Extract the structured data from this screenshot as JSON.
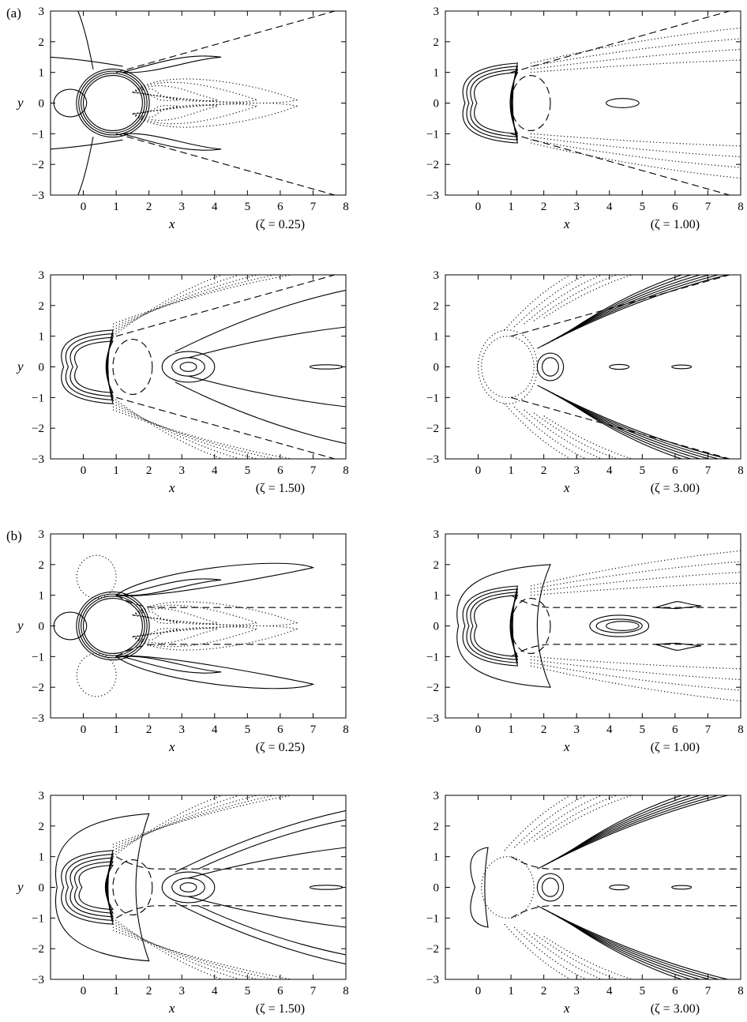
{
  "groups": [
    {
      "label": "(a)",
      "panels": [
        0,
        1,
        2,
        3
      ]
    },
    {
      "label": "(b)",
      "panels": [
        4,
        5,
        6,
        7
      ]
    }
  ],
  "chart_data": [
    {
      "type": "contour",
      "group": "a",
      "annotation": "(ζ = 0.25)",
      "xlabel": "x",
      "ylabel": "y",
      "xlim": [
        -1,
        8
      ],
      "ylim": [
        -3,
        3
      ],
      "xticks": [
        0,
        1,
        2,
        3,
        4,
        5,
        6,
        7,
        8
      ],
      "yticks": [
        -3,
        -2,
        -1,
        0,
        1,
        2,
        3
      ],
      "wake_lines": "diverging",
      "solid_levels": 4,
      "dotted_levels": 4
    },
    {
      "type": "contour",
      "group": "a",
      "annotation": "(ζ = 1.00)",
      "xlabel": "x",
      "ylabel": "",
      "xlim": [
        -1,
        8
      ],
      "ylim": [
        -3,
        3
      ],
      "xticks": [
        0,
        1,
        2,
        3,
        4,
        5,
        6,
        7,
        8
      ],
      "yticks": [
        -3,
        -2,
        -1,
        0,
        1,
        2,
        3
      ],
      "wake_lines": "diverging",
      "solid_levels": 4,
      "dotted_levels": 4
    },
    {
      "type": "contour",
      "group": "a",
      "annotation": "(ζ = 1.50)",
      "xlabel": "x",
      "ylabel": "y",
      "xlim": [
        -1,
        8
      ],
      "ylim": [
        -3,
        3
      ],
      "xticks": [
        0,
        1,
        2,
        3,
        4,
        5,
        6,
        7,
        8
      ],
      "yticks": [
        -3,
        -2,
        -1,
        0,
        1,
        2,
        3
      ],
      "wake_lines": "diverging",
      "solid_levels": 4,
      "dotted_levels": 5
    },
    {
      "type": "contour",
      "group": "a",
      "annotation": "(ζ = 3.00)",
      "xlabel": "x",
      "ylabel": "",
      "xlim": [
        -1,
        8
      ],
      "ylim": [
        -3,
        3
      ],
      "xticks": [
        0,
        1,
        2,
        3,
        4,
        5,
        6,
        7,
        8
      ],
      "yticks": [
        -3,
        -2,
        -1,
        0,
        1,
        2,
        3
      ],
      "wake_lines": "diverging",
      "solid_levels": 6,
      "dotted_levels": 5
    },
    {
      "type": "contour",
      "group": "b",
      "annotation": "(ζ = 0.25)",
      "xlabel": "x",
      "ylabel": "y",
      "xlim": [
        -1,
        8
      ],
      "ylim": [
        -3,
        3
      ],
      "xticks": [
        0,
        1,
        2,
        3,
        4,
        5,
        6,
        7,
        8
      ],
      "yticks": [
        -3,
        -2,
        -1,
        0,
        1,
        2,
        3
      ],
      "wake_lines": "parallel",
      "solid_levels": 4,
      "dotted_levels": 4
    },
    {
      "type": "contour",
      "group": "b",
      "annotation": "(ζ = 1.00)",
      "xlabel": "x",
      "ylabel": "",
      "xlim": [
        -1,
        8
      ],
      "ylim": [
        -3,
        3
      ],
      "xticks": [
        0,
        1,
        2,
        3,
        4,
        5,
        6,
        7,
        8
      ],
      "yticks": [
        -3,
        -2,
        -1,
        0,
        1,
        2,
        3
      ],
      "wake_lines": "parallel",
      "solid_levels": 4,
      "dotted_levels": 4
    },
    {
      "type": "contour",
      "group": "b",
      "annotation": "(ζ = 1.50)",
      "xlabel": "x",
      "ylabel": "y",
      "xlim": [
        -1,
        8
      ],
      "ylim": [
        -3,
        3
      ],
      "xticks": [
        0,
        1,
        2,
        3,
        4,
        5,
        6,
        7,
        8
      ],
      "yticks": [
        -3,
        -2,
        -1,
        0,
        1,
        2,
        3
      ],
      "wake_lines": "parallel",
      "solid_levels": 5,
      "dotted_levels": 5
    },
    {
      "type": "contour",
      "group": "b",
      "annotation": "(ζ = 3.00)",
      "xlabel": "x",
      "ylabel": "",
      "xlim": [
        -1,
        8
      ],
      "ylim": [
        -3,
        3
      ],
      "xticks": [
        0,
        1,
        2,
        3,
        4,
        5,
        6,
        7,
        8
      ],
      "yticks": [
        -3,
        -2,
        -1,
        0,
        1,
        2,
        3
      ],
      "wake_lines": "parallel",
      "solid_levels": 6,
      "dotted_levels": 5
    }
  ]
}
